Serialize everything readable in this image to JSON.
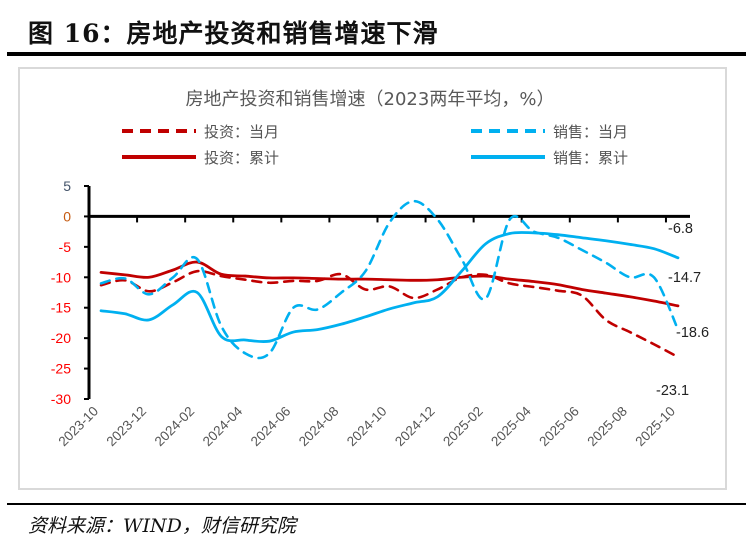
{
  "figure_title": "图 16：房地产投资和销售增速下滑",
  "source": "资料来源：WIND，财信研究院",
  "chart_data": {
    "type": "line",
    "title": "房地产投资和销售增速（2023两年平均，%）",
    "xlabel": "",
    "ylabel": "",
    "ylim": [
      -30,
      5
    ],
    "yticks": [
      5,
      0,
      -5,
      -10,
      -15,
      -20,
      -25,
      -30
    ],
    "grid": false,
    "legend_placement": "top",
    "categories": [
      "2023-10",
      "2023-11",
      "2023-12",
      "2024-01",
      "2024-02",
      "2024-03",
      "2024-04",
      "2024-05",
      "2024-06",
      "2024-07",
      "2024-08",
      "2024-09",
      "2024-10",
      "2024-11",
      "2024-12",
      "2025-01",
      "2025-02",
      "2025-03",
      "2025-04",
      "2025-05",
      "2025-06",
      "2025-07",
      "2025-08",
      "2025-09",
      "2025-10"
    ],
    "tick_labels": [
      "2023-10",
      "2023-12",
      "2024-02",
      "2024-04",
      "2024-06",
      "2024-08",
      "2024-10",
      "2024-12",
      "2025-02",
      "2025-04",
      "2025-06",
      "2025-08",
      "2025-10"
    ],
    "series": [
      {
        "name": "投资：当月",
        "color": "#c00000",
        "style": "dashed",
        "values": [
          -11.3,
          -10.5,
          -12.3,
          -10.8,
          -9.0,
          -9.8,
          -10.4,
          -10.9,
          -10.6,
          -10.6,
          -9.5,
          -12.0,
          -11.5,
          -13.4,
          -12.0,
          -10.0,
          -9.6,
          -11.0,
          -11.6,
          -12.2,
          -13.0,
          -17.0,
          -19.0,
          -21.0,
          -23.1
        ],
        "end_label": "-23.1"
      },
      {
        "name": "销售：当月",
        "color": "#00b0f0",
        "style": "dashed",
        "values": [
          -11.0,
          -10.2,
          -12.8,
          -10.0,
          -7.0,
          -18.0,
          -22.5,
          -22.5,
          -15.0,
          -15.3,
          -12.5,
          -9.0,
          -1.0,
          2.5,
          -0.5,
          -7.0,
          -13.5,
          -0.5,
          -2.5,
          -3.5,
          -5.5,
          -7.6,
          -10.0,
          -10.0,
          -18.6
        ],
        "end_label": "-18.6"
      },
      {
        "name": "投资：累计",
        "color": "#c00000",
        "style": "solid",
        "values": [
          -9.2,
          -9.6,
          -10.0,
          -8.8,
          -7.5,
          -9.5,
          -9.8,
          -10.1,
          -10.1,
          -10.2,
          -10.3,
          -10.3,
          -10.4,
          -10.5,
          -10.4,
          -10.0,
          -9.8,
          -10.3,
          -10.7,
          -11.2,
          -12.0,
          -12.6,
          -13.2,
          -13.9,
          -14.7
        ],
        "end_label": "-14.7"
      },
      {
        "name": "销售：累计",
        "color": "#00b0f0",
        "style": "solid",
        "values": [
          -15.5,
          -16.0,
          -17.0,
          -14.5,
          -12.5,
          -19.7,
          -20.3,
          -20.5,
          -19.0,
          -18.6,
          -17.7,
          -16.5,
          -15.2,
          -14.2,
          -13.2,
          -9.0,
          -4.5,
          -2.8,
          -2.7,
          -3.0,
          -3.5,
          -4.0,
          -4.6,
          -5.3,
          -6.8
        ],
        "end_label": "-6.8"
      }
    ]
  }
}
